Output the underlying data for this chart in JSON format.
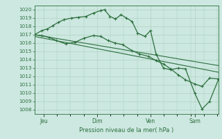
{
  "bg_color": "#cce8e0",
  "grid_color": "#aaccbb",
  "line_color": "#2d6e3e",
  "ylim": [
    1007.5,
    1020.5
  ],
  "yticks": [
    1008,
    1009,
    1010,
    1011,
    1012,
    1013,
    1014,
    1015,
    1016,
    1017,
    1018,
    1019,
    1020
  ],
  "xlabel": "Pression niveau de la mer( hPa )",
  "xtick_labels": [
    "Jeu",
    "Dim",
    "Ven",
    "Sam"
  ],
  "xlim": [
    0,
    100
  ],
  "xtick_pos": [
    5,
    34,
    63,
    87
  ],
  "series1_x": [
    0,
    4,
    7,
    10,
    13,
    16,
    20,
    24,
    28,
    32,
    36,
    38,
    41,
    44,
    47,
    50,
    53,
    56,
    60,
    63,
    66,
    70,
    74,
    78,
    82,
    87,
    91,
    95,
    100
  ],
  "series1_y": [
    1017.0,
    1017.5,
    1017.7,
    1018.1,
    1018.5,
    1018.8,
    1019.0,
    1019.1,
    1019.2,
    1019.6,
    1019.9,
    1020.0,
    1019.2,
    1018.9,
    1019.4,
    1019.0,
    1018.6,
    1017.2,
    1016.8,
    1017.5,
    1014.7,
    1013.0,
    1012.8,
    1013.0,
    1012.9,
    1010.0,
    1008.1,
    1009.0,
    1011.7
  ],
  "series2_x": [
    0,
    100
  ],
  "series2_y": [
    1017.0,
    1013.3
  ],
  "series3_x": [
    0,
    100
  ],
  "series3_y": [
    1016.8,
    1012.5
  ],
  "series4_x": [
    0,
    4,
    8,
    12,
    17,
    22,
    27,
    32,
    36,
    40,
    44,
    48,
    53,
    57,
    62,
    66,
    70,
    74,
    78,
    82,
    87,
    91,
    95,
    100
  ],
  "series4_y": [
    1017.0,
    1016.9,
    1016.7,
    1016.3,
    1015.9,
    1016.1,
    1016.6,
    1016.9,
    1016.8,
    1016.3,
    1016.0,
    1015.8,
    1015.1,
    1014.7,
    1014.4,
    1013.9,
    1013.5,
    1012.9,
    1012.2,
    1011.6,
    1011.1,
    1010.8,
    1011.8,
    1011.7
  ]
}
